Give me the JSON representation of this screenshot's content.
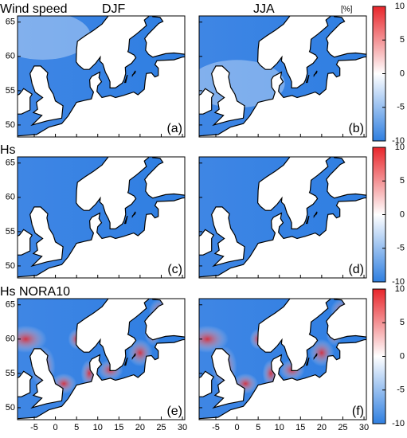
{
  "row_titles": [
    "Wind speed",
    "Hs",
    "Hs NORA10"
  ],
  "season_labels": [
    "DJF",
    "JJA"
  ],
  "unit": "[%]",
  "panel_labels": [
    "(a)",
    "(b)",
    "(c)",
    "(d)",
    "(e)",
    "(f)"
  ],
  "lat_axis": {
    "range": [
      48.25,
      65.9
    ],
    "ticks": [
      50,
      55,
      60,
      65
    ]
  },
  "lon_axis": {
    "range": [
      -8.95,
      30.56
    ],
    "ticks": [
      -5,
      0,
      5,
      10,
      15,
      20,
      25,
      30
    ]
  },
  "colorbar": {
    "range": [
      -10,
      10
    ],
    "ticks": [
      10,
      5,
      0,
      -5,
      -10
    ]
  }
}
